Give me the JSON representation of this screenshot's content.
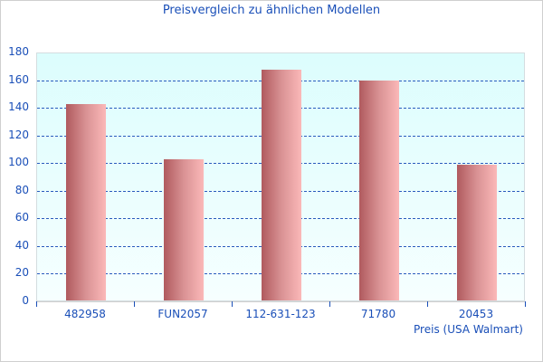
{
  "chart_data": {
    "type": "bar",
    "title": "Preisvergleich zu ähnlichen Modellen",
    "categories": [
      "482958",
      "FUN2057",
      "112-631-123",
      "71780",
      "20453"
    ],
    "series": [
      {
        "name": "Preis (USA Walmart)",
        "values": [
          142,
          102,
          167,
          159,
          98
        ]
      }
    ],
    "xlabel": "Preis (USA Walmart)",
    "ylabel": "",
    "ylim": [
      0,
      180
    ],
    "yticks": [
      "0",
      "20",
      "40",
      "60",
      "80",
      "100",
      "120",
      "140",
      "160",
      "180"
    ],
    "grid": true,
    "legend": "none"
  },
  "colors": {
    "text": "#1a4fb8",
    "bar_dark": "#b05a5e",
    "bar_light": "#fbb8b8",
    "plot_bg": "#dcfdfd",
    "grid": "#2a5bbd"
  }
}
